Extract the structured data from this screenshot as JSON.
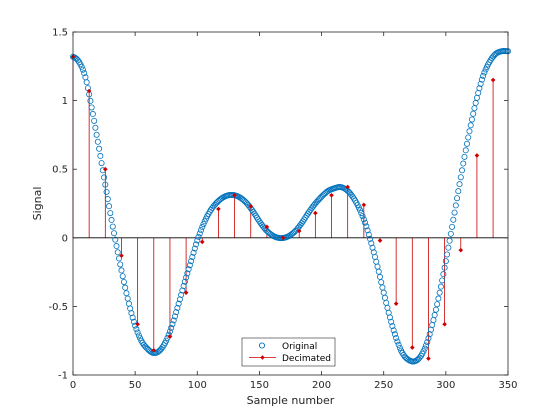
{
  "chart_data": {
    "type": "scatter",
    "xlabel": "Sample number",
    "ylabel": "Signal",
    "xlim": [
      0,
      350
    ],
    "ylim": [
      -1,
      1.5
    ],
    "xticks": [
      0,
      50,
      100,
      150,
      200,
      250,
      300,
      350
    ],
    "yticks": [
      -1,
      -0.5,
      0,
      0.5,
      1,
      1.5
    ],
    "xtick_labels": [
      "0",
      "50",
      "100",
      "150",
      "200",
      "250",
      "300",
      "350"
    ],
    "ytick_labels": [
      "-1",
      "-0.5",
      "0",
      "0.5",
      "1",
      "1.5"
    ],
    "grid": false,
    "legend_position": "bottom-center",
    "series": [
      {
        "name": "Original",
        "style": "markers",
        "marker": "circle",
        "color": "#0072bd",
        "x": [
          0,
          5,
          10,
          15,
          20,
          25,
          30,
          35,
          40,
          45,
          50,
          55,
          60,
          65,
          70,
          75,
          80,
          85,
          90,
          95,
          100,
          105,
          110,
          115,
          120,
          125,
          130,
          135,
          140,
          145,
          150,
          155,
          160,
          165,
          170,
          175,
          180,
          185,
          190,
          195,
          200,
          205,
          210,
          215,
          220,
          225,
          230,
          235,
          240,
          245,
          250,
          255,
          260,
          265,
          270,
          275,
          280,
          285,
          290,
          295,
          300,
          305,
          310,
          315,
          320,
          325,
          330,
          335,
          340,
          345,
          350
        ],
        "y": [
          1.32,
          1.28,
          1.17,
          0.95,
          0.7,
          0.44,
          0.18,
          -0.06,
          -0.28,
          -0.48,
          -0.64,
          -0.75,
          -0.81,
          -0.84,
          -0.82,
          -0.75,
          -0.63,
          -0.48,
          -0.32,
          -0.17,
          -0.02,
          0.1,
          0.19,
          0.25,
          0.29,
          0.31,
          0.31,
          0.29,
          0.25,
          0.19,
          0.12,
          0.06,
          0.02,
          0.0,
          0.0,
          0.02,
          0.06,
          0.12,
          0.19,
          0.25,
          0.3,
          0.34,
          0.36,
          0.37,
          0.35,
          0.3,
          0.22,
          0.11,
          -0.04,
          -0.21,
          -0.4,
          -0.58,
          -0.73,
          -0.84,
          -0.89,
          -0.9,
          -0.86,
          -0.76,
          -0.6,
          -0.4,
          -0.17,
          0.08,
          0.34,
          0.59,
          0.82,
          1.02,
          1.18,
          1.28,
          1.34,
          1.36,
          1.36
        ]
      },
      {
        "name": "Decimated",
        "style": "stem",
        "marker": "diamond",
        "color": "#cc0000",
        "x": [
          0,
          13,
          26,
          39,
          52,
          65,
          78,
          91,
          104,
          117,
          130,
          143,
          156,
          169,
          182,
          195,
          208,
          221,
          234,
          247,
          260,
          273,
          286,
          299,
          312,
          325,
          338
        ],
        "y": [
          1.32,
          1.07,
          0.5,
          -0.13,
          -0.63,
          -0.82,
          -0.72,
          -0.4,
          -0.03,
          0.21,
          0.31,
          0.23,
          0.08,
          0.0,
          0.05,
          0.18,
          0.31,
          0.37,
          0.24,
          -0.02,
          -0.48,
          -0.8,
          -0.88,
          -0.63,
          -0.09,
          0.6,
          1.15
        ]
      }
    ]
  }
}
